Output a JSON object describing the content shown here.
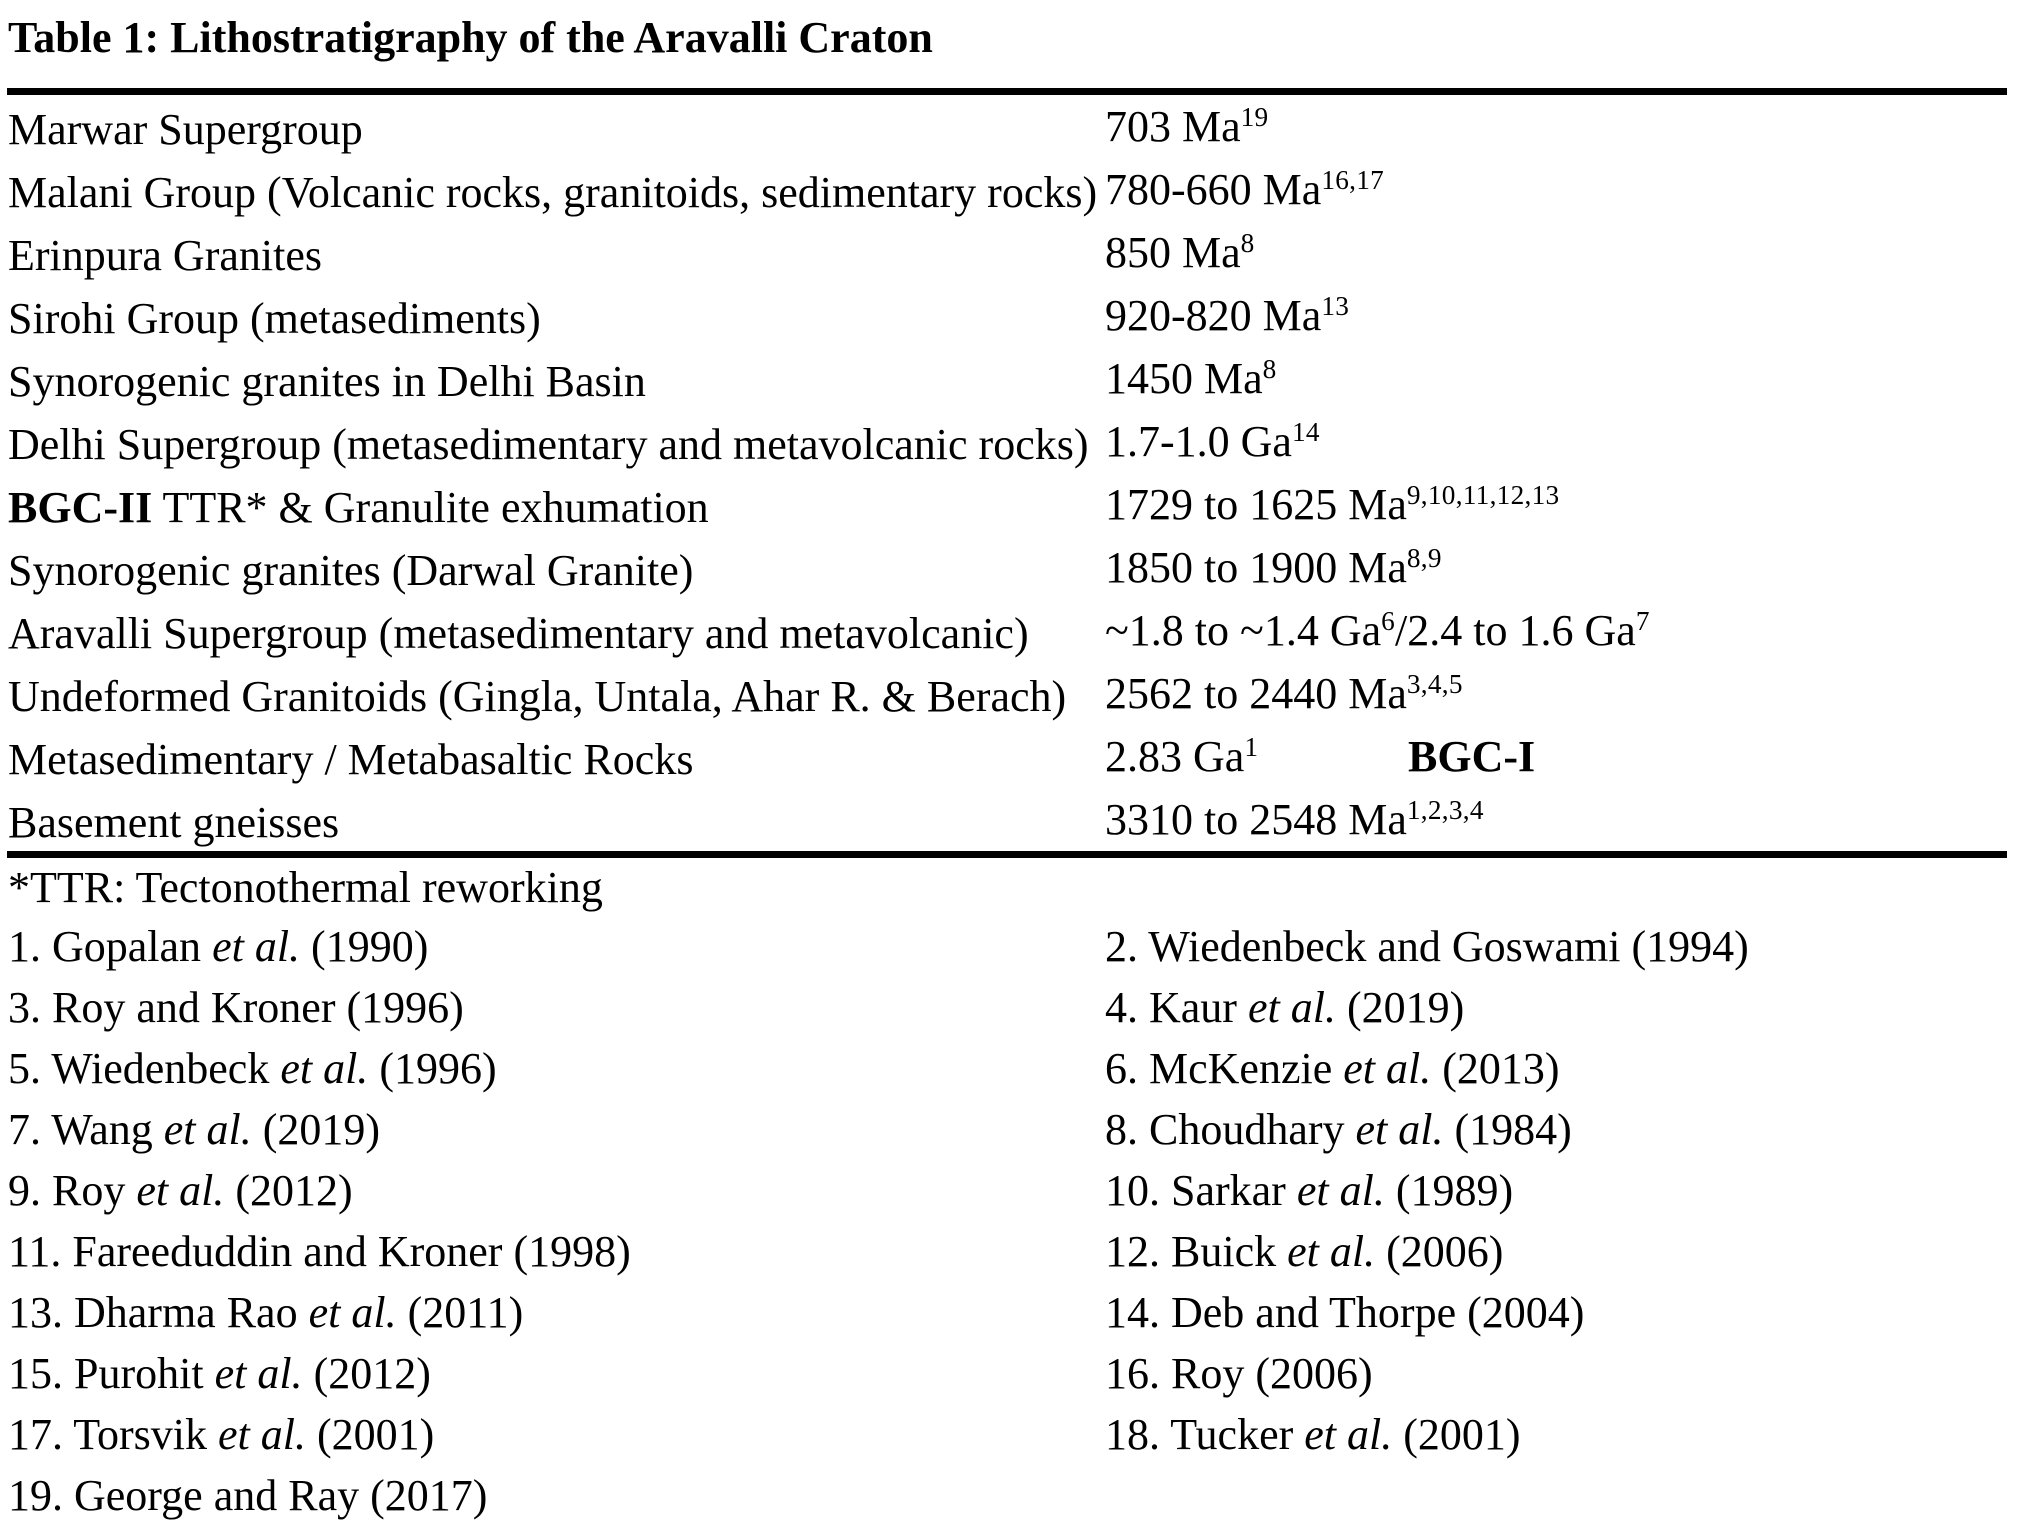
{
  "title": "Table 1: Lithostratigraphy of the Aravalli Craton",
  "table": {
    "rows": [
      {
        "unit": [
          {
            "t": "Marwar Supergroup"
          }
        ],
        "age": [
          {
            "t": "703 Ma"
          },
          {
            "sup": "19"
          }
        ]
      },
      {
        "unit": [
          {
            "t": "Malani Group (Volcanic rocks, granitoids, sedimentary rocks)"
          }
        ],
        "age": [
          {
            "t": "780-660 Ma"
          },
          {
            "sup": "16,17"
          }
        ]
      },
      {
        "unit": [
          {
            "t": "Erinpura Granites"
          }
        ],
        "age": [
          {
            "t": "850 Ma"
          },
          {
            "sup": "8"
          }
        ]
      },
      {
        "unit": [
          {
            "t": "Sirohi Group (metasediments)"
          }
        ],
        "age": [
          {
            "t": "920-820 Ma"
          },
          {
            "sup": "13"
          }
        ]
      },
      {
        "unit": [
          {
            "t": "Synorogenic granites in Delhi Basin"
          }
        ],
        "age": [
          {
            "t": "1450 Ma"
          },
          {
            "sup": "8"
          }
        ]
      },
      {
        "unit": [
          {
            "t": "Delhi Supergroup (metasedimentary and metavolcanic rocks)"
          }
        ],
        "age": [
          {
            "t": "1.7-1.0 Ga"
          },
          {
            "sup": "14"
          }
        ]
      },
      {
        "unit": [
          {
            "t": "BGC-II",
            "b": true
          },
          {
            "t": " TTR* & Granulite exhumation"
          }
        ],
        "age": [
          {
            "t": "1729 to 1625 Ma"
          },
          {
            "sup": "9,10,11,12,13"
          }
        ]
      },
      {
        "unit": [
          {
            "t": "Synorogenic granites (Darwal Granite)"
          }
        ],
        "age": [
          {
            "t": "1850 to 1900 Ma"
          },
          {
            "sup": "8,9"
          }
        ]
      },
      {
        "unit": [
          {
            "t": "Aravalli Supergroup (metasedimentary and metavolcanic)"
          }
        ],
        "age": [
          {
            "t": "~1.8 to ~1.4 Ga"
          },
          {
            "sup": "6"
          },
          {
            "t": "/2.4 to 1.6 Ga"
          },
          {
            "sup": "7"
          }
        ]
      },
      {
        "unit": [
          {
            "t": "Undeformed Granitoids (Gingla, Untala, Ahar R. & Berach)"
          }
        ],
        "age": [
          {
            "t": "2562 to 2440 Ma"
          },
          {
            "sup": "3,4,5"
          }
        ]
      },
      {
        "unit": [
          {
            "t": "Metasedimentary / Metabasaltic Rocks"
          }
        ],
        "age": [
          {
            "t": "2.83 Ga"
          },
          {
            "sup": "1"
          }
        ],
        "label": "BGC-I"
      },
      {
        "unit": [
          {
            "t": "Basement gneisses"
          }
        ],
        "age": [
          {
            "t": "3310 to 2548 Ma"
          },
          {
            "sup": "1,2,3,4"
          }
        ]
      }
    ]
  },
  "footnote": "*TTR: Tectonothermal reworking",
  "references": {
    "rows": [
      {
        "left": [
          {
            "t": "1. Gopalan "
          },
          {
            "t": "et al.",
            "i": true
          },
          {
            "t": " (1990)"
          }
        ],
        "right": [
          {
            "t": "2. Wiedenbeck and Goswami (1994)"
          }
        ]
      },
      {
        "left": [
          {
            "t": "3. Roy and Kroner (1996)"
          }
        ],
        "right": [
          {
            "t": "4. Kaur "
          },
          {
            "t": "et al.",
            "i": true
          },
          {
            "t": " (2019)"
          }
        ]
      },
      {
        "left": [
          {
            "t": "5. Wiedenbeck "
          },
          {
            "t": "et al.",
            "i": true
          },
          {
            "t": " (1996)"
          }
        ],
        "right": [
          {
            "t": "6. McKenzie "
          },
          {
            "t": "et al.",
            "i": true
          },
          {
            "t": " (2013)"
          }
        ]
      },
      {
        "left": [
          {
            "t": "7. Wang "
          },
          {
            "t": "et al.",
            "i": true
          },
          {
            "t": " (2019)"
          }
        ],
        "right": [
          {
            "t": "8. Choudhary "
          },
          {
            "t": "et al.",
            "i": true
          },
          {
            "t": " (1984)"
          }
        ]
      },
      {
        "left": [
          {
            "t": "9. Roy "
          },
          {
            "t": "et al.",
            "i": true
          },
          {
            "t": " (2012)"
          }
        ],
        "right": [
          {
            "t": "10. Sarkar "
          },
          {
            "t": "et al.",
            "i": true
          },
          {
            "t": " (1989)"
          }
        ]
      },
      {
        "left": [
          {
            "t": "11. Fareeduddin and Kroner (1998)"
          }
        ],
        "right": [
          {
            "t": "12. Buick "
          },
          {
            "t": "et al.",
            "i": true
          },
          {
            "t": " (2006)"
          }
        ]
      },
      {
        "left": [
          {
            "t": "13. Dharma Rao "
          },
          {
            "t": "et al.",
            "i": true
          },
          {
            "t": " (2011)"
          }
        ],
        "right": [
          {
            "t": "14. Deb and Thorpe (2004)"
          }
        ]
      },
      {
        "left": [
          {
            "t": "15. Purohit "
          },
          {
            "t": "et al.",
            "i": true
          },
          {
            "t": " (2012)"
          }
        ],
        "right": [
          {
            "t": "16. Roy (2006)"
          }
        ]
      },
      {
        "left": [
          {
            "t": "17. Torsvik "
          },
          {
            "t": "et al.",
            "i": true
          },
          {
            "t": " (2001)"
          }
        ],
        "right": [
          {
            "t": "18. Tucker "
          },
          {
            "t": "et al.",
            "i": true
          },
          {
            "t": " (2001)"
          }
        ]
      },
      {
        "left": [
          {
            "t": "19. George and Ray (2017)"
          }
        ],
        "right": null
      }
    ]
  },
  "colors": {
    "text": "#000000",
    "background": "#ffffff",
    "rule": "#000000"
  }
}
